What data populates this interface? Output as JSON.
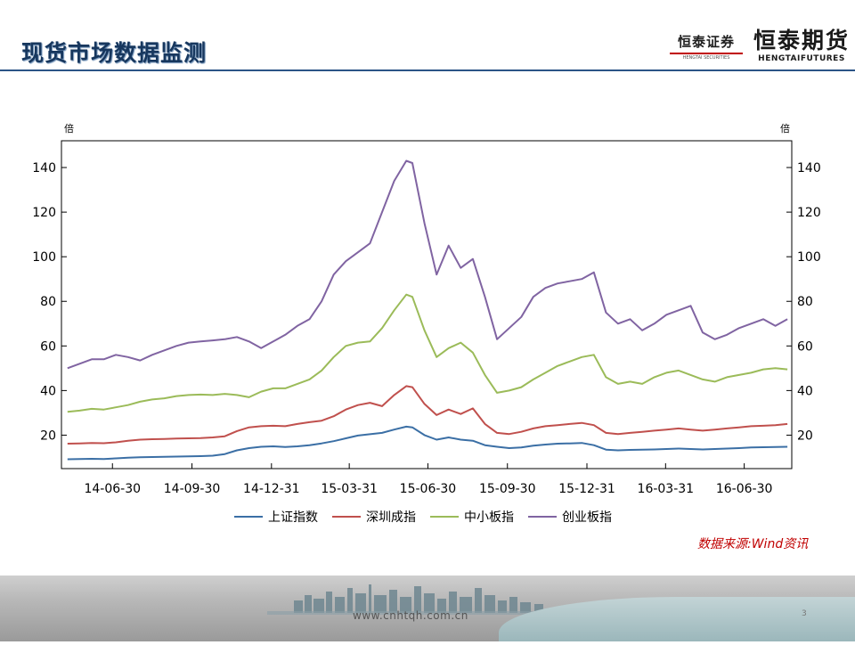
{
  "slide": {
    "title": "现货市场数据监测",
    "source_note": "数据来源:Wind资讯",
    "footer_url": "www.cnhtqh.com.cn",
    "page_number": "3"
  },
  "logos": {
    "securities_cn": "恒泰证券",
    "securities_en": "HENGTAI SECURITIES",
    "futures_cn": "恒泰期货",
    "futures_en": "HENGTAIFUTURES"
  },
  "colors": {
    "title": "#17375e",
    "series": [
      "#3b6fa5",
      "#c0504d",
      "#9bbb59",
      "#8064a2"
    ],
    "source": "#c00000"
  },
  "chart_data": {
    "type": "line",
    "y_unit_left": "倍",
    "y_unit_right": "倍",
    "ylim": [
      5,
      152
    ],
    "yticks": [
      20,
      40,
      60,
      80,
      100,
      120,
      140
    ],
    "x_ticks": [
      "14-06-30",
      "14-09-30",
      "14-12-31",
      "15-03-31",
      "15-06-30",
      "15-09-30",
      "15-12-31",
      "16-03-31",
      "16-06-30"
    ],
    "grid": false,
    "legend_position": "bottom",
    "x": [
      "2014-05-09",
      "2014-05-23",
      "2014-06-06",
      "2014-06-20",
      "2014-07-04",
      "2014-07-18",
      "2014-08-01",
      "2014-08-15",
      "2014-08-29",
      "2014-09-12",
      "2014-09-26",
      "2014-10-10",
      "2014-10-24",
      "2014-11-07",
      "2014-11-21",
      "2014-12-05",
      "2014-12-19",
      "2015-01-02",
      "2015-01-16",
      "2015-01-30",
      "2015-02-13",
      "2015-02-27",
      "2015-03-13",
      "2015-03-27",
      "2015-04-10",
      "2015-04-24",
      "2015-05-08",
      "2015-05-22",
      "2015-06-05",
      "2015-06-12",
      "2015-06-26",
      "2015-07-10",
      "2015-07-24",
      "2015-08-07",
      "2015-08-21",
      "2015-09-04",
      "2015-09-18",
      "2015-10-02",
      "2015-10-16",
      "2015-10-30",
      "2015-11-13",
      "2015-11-27",
      "2015-12-11",
      "2015-12-25",
      "2016-01-08",
      "2016-01-22",
      "2016-02-05",
      "2016-02-19",
      "2016-03-04",
      "2016-03-18",
      "2016-04-01",
      "2016-04-15",
      "2016-04-29",
      "2016-05-13",
      "2016-05-27",
      "2016-06-10",
      "2016-06-24",
      "2016-07-08",
      "2016-07-22",
      "2016-08-05",
      "2016-08-19"
    ],
    "series": [
      {
        "name": "上证指数",
        "values": [
          9.2,
          9.3,
          9.4,
          9.3,
          9.6,
          9.9,
          10.1,
          10.2,
          10.3,
          10.4,
          10.5,
          10.6,
          10.8,
          11.5,
          13.2,
          14.2,
          14.8,
          15.0,
          14.7,
          15.0,
          15.5,
          16.3,
          17.3,
          18.6,
          19.8,
          20.4,
          21.0,
          22.5,
          23.8,
          23.5,
          20.0,
          18.0,
          19.0,
          18.0,
          17.5,
          15.5,
          14.8,
          14.2,
          14.5,
          15.3,
          15.8,
          16.2,
          16.3,
          16.5,
          15.5,
          13.5,
          13.2,
          13.4,
          13.5,
          13.6,
          13.8,
          14.0,
          13.8,
          13.6,
          13.8,
          14.0,
          14.2,
          14.5,
          14.6,
          14.7,
          14.8
        ]
      },
      {
        "name": "深圳成指",
        "values": [
          16.2,
          16.3,
          16.5,
          16.4,
          16.8,
          17.5,
          18.0,
          18.2,
          18.3,
          18.5,
          18.6,
          18.7,
          19.0,
          19.5,
          21.8,
          23.5,
          24.0,
          24.2,
          24.0,
          25.0,
          25.8,
          26.5,
          28.5,
          31.5,
          33.5,
          34.5,
          33.0,
          38.0,
          42.0,
          41.5,
          34.0,
          29.0,
          31.5,
          29.5,
          32.0,
          25.0,
          21.0,
          20.5,
          21.5,
          23.0,
          24.0,
          24.5,
          25.0,
          25.5,
          24.5,
          21.0,
          20.5,
          21.0,
          21.5,
          22.0,
          22.5,
          23.0,
          22.5,
          22.0,
          22.5,
          23.0,
          23.5,
          24.0,
          24.2,
          24.5,
          25.0
        ]
      },
      {
        "name": "中小板指",
        "values": [
          30.5,
          31.0,
          31.8,
          31.5,
          32.5,
          33.5,
          35.0,
          36.0,
          36.5,
          37.5,
          38.0,
          38.2,
          38.0,
          38.5,
          38.0,
          37.0,
          39.5,
          41.0,
          41.0,
          43.0,
          45.0,
          49.0,
          55.0,
          60.0,
          61.5,
          62.0,
          68.0,
          76.0,
          83.0,
          82.0,
          67.0,
          55.0,
          59.0,
          61.5,
          57.0,
          47.0,
          39.0,
          40.0,
          41.5,
          45.0,
          48.0,
          51.0,
          53.0,
          55.0,
          56.0,
          46.0,
          43.0,
          44.0,
          43.0,
          46.0,
          48.0,
          49.0,
          47.0,
          45.0,
          44.0,
          46.0,
          47.0,
          48.0,
          49.5,
          50.0,
          49.5
        ]
      },
      {
        "name": "创业板指",
        "values": [
          50.0,
          52.0,
          54.0,
          54.0,
          56.0,
          55.0,
          53.5,
          56.0,
          58.0,
          60.0,
          61.5,
          62.0,
          62.5,
          63.0,
          64.0,
          62.0,
          59.0,
          62.0,
          65.0,
          69.0,
          72.0,
          80.0,
          92.0,
          98.0,
          102.0,
          106.0,
          120.0,
          134.0,
          143.0,
          142.0,
          115.0,
          92.0,
          105.0,
          95.0,
          99.0,
          82.0,
          63.0,
          68.0,
          73.0,
          82.0,
          86.0,
          88.0,
          89.0,
          90.0,
          93.0,
          75.0,
          70.0,
          72.0,
          67.0,
          70.0,
          74.0,
          76.0,
          78.0,
          66.0,
          63.0,
          65.0,
          68.0,
          70.0,
          72.0,
          69.0,
          72.0
        ]
      }
    ]
  }
}
